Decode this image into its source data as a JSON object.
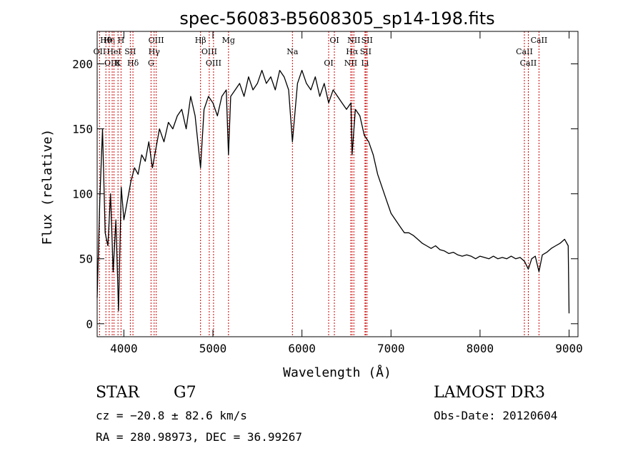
{
  "chart_data": {
    "type": "line",
    "title": "spec-56083-B5608305_sp14-198.fits",
    "xlabel": "Wavelength (Å)",
    "ylabel": "Flux (relative)",
    "xlim": [
      3700,
      9100
    ],
    "ylim": [
      -10,
      225
    ],
    "xticks": [
      4000,
      5000,
      6000,
      7000,
      8000,
      9000
    ],
    "yticks": [
      0,
      50,
      100,
      150,
      200
    ],
    "series": [
      {
        "name": "flux",
        "x": [
          3700,
          3730,
          3760,
          3790,
          3820,
          3850,
          3880,
          3910,
          3940,
          3970,
          4000,
          4040,
          4080,
          4120,
          4160,
          4200,
          4240,
          4280,
          4320,
          4360,
          4400,
          4450,
          4500,
          4550,
          4600,
          4650,
          4700,
          4750,
          4800,
          4861,
          4900,
          4950,
          5000,
          5050,
          5100,
          5150,
          5175,
          5200,
          5250,
          5300,
          5350,
          5400,
          5450,
          5500,
          5550,
          5600,
          5650,
          5700,
          5750,
          5800,
          5850,
          5893,
          5950,
          6000,
          6050,
          6100,
          6150,
          6200,
          6250,
          6300,
          6350,
          6400,
          6450,
          6500,
          6550,
          6563,
          6600,
          6650,
          6700,
          6750,
          6800,
          6850,
          6900,
          6950,
          7000,
          7050,
          7100,
          7150,
          7200,
          7250,
          7300,
          7350,
          7400,
          7450,
          7500,
          7550,
          7600,
          7650,
          7700,
          7750,
          7800,
          7850,
          7900,
          7950,
          8000,
          8050,
          8100,
          8150,
          8200,
          8250,
          8300,
          8350,
          8400,
          8450,
          8500,
          8542,
          8580,
          8620,
          8662,
          8700,
          8750,
          8800,
          8850,
          8900,
          8950,
          8990,
          9000
        ],
        "values": [
          20,
          95,
          150,
          70,
          60,
          100,
          40,
          80,
          10,
          105,
          80,
          95,
          110,
          120,
          115,
          130,
          125,
          140,
          120,
          135,
          150,
          140,
          155,
          150,
          160,
          165,
          150,
          175,
          160,
          120,
          165,
          175,
          170,
          160,
          175,
          180,
          130,
          175,
          180,
          185,
          175,
          190,
          180,
          185,
          195,
          185,
          190,
          180,
          195,
          190,
          180,
          140,
          185,
          195,
          185,
          180,
          190,
          175,
          185,
          170,
          180,
          175,
          170,
          165,
          170,
          130,
          165,
          160,
          145,
          140,
          130,
          115,
          105,
          95,
          85,
          80,
          75,
          70,
          70,
          68,
          65,
          62,
          60,
          58,
          60,
          57,
          56,
          54,
          55,
          53,
          52,
          53,
          52,
          50,
          52,
          51,
          50,
          52,
          50,
          51,
          50,
          52,
          50,
          51,
          48,
          42,
          50,
          52,
          40,
          53,
          55,
          58,
          60,
          62,
          65,
          60,
          8
        ]
      }
    ],
    "line_markers": [
      {
        "name": "Hθ",
        "x": 3798
      },
      {
        "name": "OII",
        "x": 3727
      },
      {
        "name": "OIII",
        "x": 3869
      },
      {
        "name": "Hη",
        "x": 3835
      },
      {
        "name": "HeI",
        "x": 3889
      },
      {
        "name": "K",
        "x": 3934
      },
      {
        "name": "H",
        "x": 3968
      },
      {
        "name": "SII",
        "x": 4072
      },
      {
        "name": "Hδ",
        "x": 4102
      },
      {
        "name": "OIII",
        "x": 4363
      },
      {
        "name": "Hγ",
        "x": 4340
      },
      {
        "name": "G",
        "x": 4305
      },
      {
        "name": "Hβ",
        "x": 4861
      },
      {
        "name": "OIII",
        "x": 4959
      },
      {
        "name": "OIII",
        "x": 5007
      },
      {
        "name": "Mg",
        "x": 5175
      },
      {
        "name": "Na",
        "x": 5893
      },
      {
        "name": "OI",
        "x": 6300
      },
      {
        "name": "OI",
        "x": 6364
      },
      {
        "name": "Hα",
        "x": 6563
      },
      {
        "name": "NII",
        "x": 6548
      },
      {
        "name": "NII",
        "x": 6583
      },
      {
        "name": "SII",
        "x": 6716
      },
      {
        "name": "Li",
        "x": 6708
      },
      {
        "name": "SII",
        "x": 6731
      },
      {
        "name": "CaII",
        "x": 8498
      },
      {
        "name": "CaII",
        "x": 8542
      },
      {
        "name": "CaII",
        "x": 8662
      }
    ],
    "grid": false,
    "line_color": "#000000",
    "marker_color": "#cc0000"
  },
  "info": {
    "classification": "STAR",
    "subclass": "G7",
    "survey": "LAMOST DR3",
    "cz": "cz = −20.8 ± 82.6 km/s",
    "obs_date": "Obs-Date: 20120604",
    "coords": "RA = 280.98973, DEC =  36.99267"
  }
}
